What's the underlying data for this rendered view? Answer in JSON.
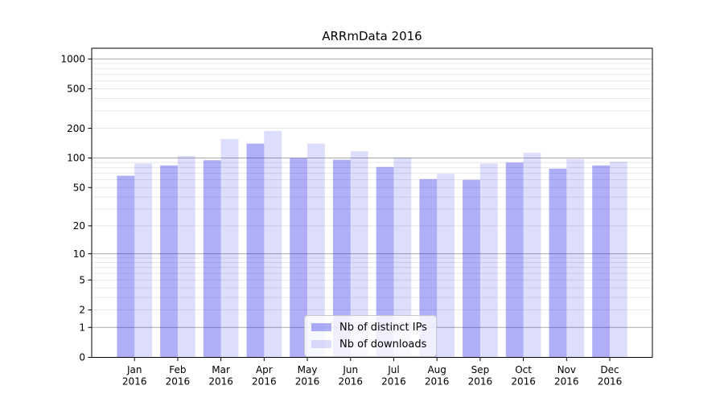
{
  "chart_data": {
    "type": "bar",
    "title": "ARRmData 2016",
    "categories": [
      "Jan 2016",
      "Feb 2016",
      "Mar 2016",
      "Apr 2016",
      "May 2016",
      "Jun 2016",
      "Jul 2016",
      "Aug 2016",
      "Sep 2016",
      "Oct 2016",
      "Nov 2016",
      "Dec 2016"
    ],
    "series": [
      {
        "name": "Nb of distinct IPs",
        "color": "rgba(25,25,235,0.35)",
        "values": [
          66,
          84,
          95,
          140,
          100,
          96,
          81,
          61,
          60,
          90,
          78,
          84
        ]
      },
      {
        "name": "Nb of downloads",
        "color": "rgba(25,25,235,0.15)",
        "values": [
          88,
          105,
          156,
          188,
          140,
          117,
          101,
          69,
          88,
          113,
          98,
          92
        ]
      }
    ],
    "xlabel": "",
    "ylabel": "",
    "yscale": "log1p",
    "ylim": [
      0,
      1280
    ],
    "yticks": [
      0,
      1,
      2,
      5,
      10,
      20,
      50,
      100,
      200,
      500,
      1000
    ],
    "grid": {
      "major_ticks": [
        1,
        10,
        100,
        1000
      ],
      "minor_ticks": [
        2,
        3,
        4,
        5,
        6,
        7,
        8,
        9,
        20,
        30,
        40,
        50,
        60,
        70,
        80,
        90,
        200,
        300,
        400,
        500,
        600,
        700,
        800,
        900
      ],
      "major_color": "#ababab",
      "minor_color": "#e8e8e8"
    },
    "legend_position": "inside lower-center"
  }
}
